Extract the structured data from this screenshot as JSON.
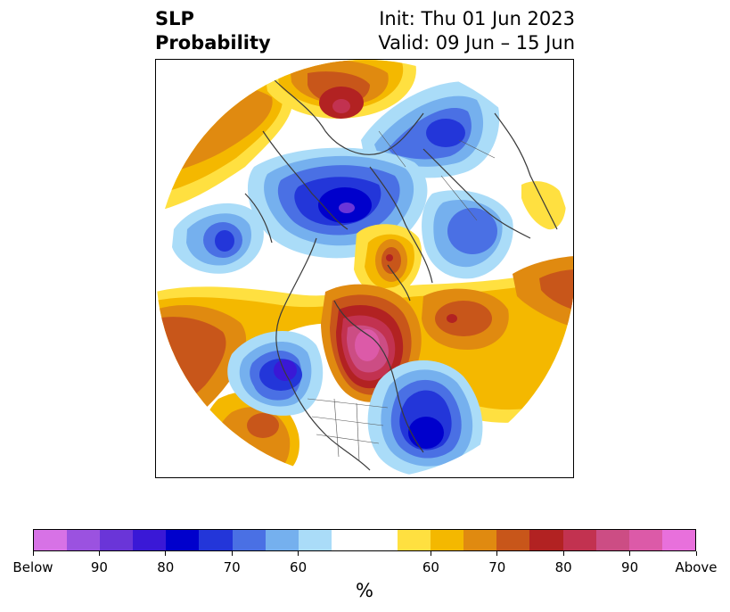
{
  "title": {
    "left_line1": "SLP",
    "left_line2": "Probability",
    "right_line1": "Init: Thu 01 Jun 2023",
    "right_line2": "Valid: 09 Jun – 15 Jun"
  },
  "colorbar": {
    "units": "%",
    "segments": [
      {
        "category": "Below",
        "color": "#d772e6"
      },
      {
        "category": "below-90",
        "color": "#9b52e0"
      },
      {
        "category": "below-85",
        "color": "#6a35d8"
      },
      {
        "category": "below-80",
        "color": "#3a18d6"
      },
      {
        "category": "below-75",
        "color": "#0000cc"
      },
      {
        "category": "below-70",
        "color": "#2336d9"
      },
      {
        "category": "below-65",
        "color": "#4a70e4"
      },
      {
        "category": "below-60",
        "color": "#75b0ee"
      },
      {
        "category": "below-55",
        "color": "#aadcf8"
      },
      {
        "category": "neutral",
        "color": "#ffffff"
      },
      {
        "category": "above-55",
        "color": "#ffe040"
      },
      {
        "category": "above-60",
        "color": "#f4b800"
      },
      {
        "category": "above-65",
        "color": "#e08a10"
      },
      {
        "category": "above-70",
        "color": "#c8561a"
      },
      {
        "category": "above-75",
        "color": "#b22222"
      },
      {
        "category": "above-80",
        "color": "#c23250"
      },
      {
        "category": "above-85",
        "color": "#cc4d84"
      },
      {
        "category": "above-90",
        "color": "#dc5aa8"
      },
      {
        "category": "Above",
        "color": "#e870dc"
      }
    ],
    "tick_labels": [
      "Below",
      "90",
      "80",
      "70",
      "60",
      "60",
      "70",
      "80",
      "90",
      "Above"
    ]
  },
  "map": {
    "projection": "north-polar-stereographic",
    "variable": "sea-level-pressure-probability",
    "anomalies": [
      {
        "region": "northern-europe-scandinavia",
        "category": "above",
        "peak_color": "#b22222"
      },
      {
        "region": "siberia",
        "category": "below",
        "peak_color": "#4a70e4"
      },
      {
        "region": "arctic-ocean-barents",
        "category": "below",
        "peak_color": "#6a35d8"
      },
      {
        "region": "north-atlantic-greenland-south",
        "category": "above",
        "peak_color": "#c8561a"
      },
      {
        "region": "canada-hudson-bay",
        "category": "above",
        "peak_color": "#dc5aa8"
      },
      {
        "region": "gulf-of-alaska",
        "category": "below",
        "peak_color": "#3a18d6"
      },
      {
        "region": "western-atlantic-us-east-coast",
        "category": "below",
        "peak_color": "#0000cc"
      },
      {
        "region": "north-pacific",
        "category": "above",
        "peak_color": "#c8561a"
      },
      {
        "region": "east-asia-japan",
        "category": "above",
        "peak_color": "#e08a10"
      },
      {
        "region": "central-atlantic-azores",
        "category": "above",
        "peak_color": "#c8561a"
      },
      {
        "region": "central-asia",
        "category": "below",
        "peak_color": "#0000cc"
      }
    ]
  }
}
